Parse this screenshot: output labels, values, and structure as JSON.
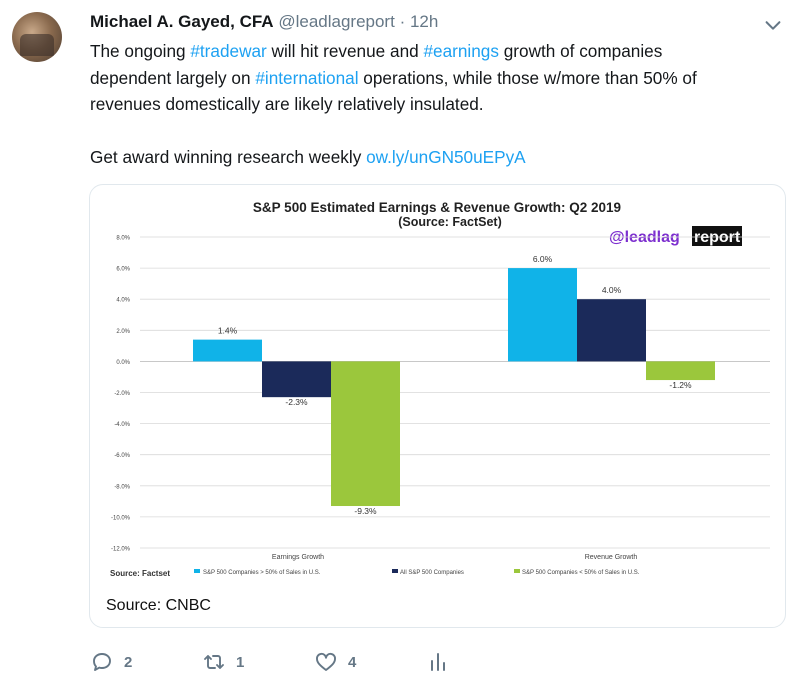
{
  "tweet": {
    "author_name": "Michael A. Gayed, CFA",
    "handle": "@leadlagreport",
    "separator": "·",
    "time": "12h",
    "text": {
      "l1_a": "The ongoing ",
      "l1_tag1": "#tradewar",
      "l1_b": " will hit revenue and ",
      "l1_tag2": "#earnings",
      "l1_c": " growth of companies",
      "l2_a": "dependent largely on ",
      "l2_tag3": "#international",
      "l2_b": " operations, while those w/more than 50% of",
      "l3": "revenues domestically are likely relatively insulated.",
      "p2_a": "Get award winning research weekly ",
      "p2_link": "ow.ly/unGN50uEPyA"
    },
    "card_caption": "Source: CNBC",
    "actions": {
      "reply_count": "2",
      "retweet_count": "1",
      "like_count": "4"
    }
  },
  "colors": {
    "accent": "#1da1f2",
    "muted": "#657786",
    "series_above": "#10b3e8",
    "series_all": "#1b2a5a",
    "series_below": "#9bc73c"
  },
  "icons": [
    "chevron-down-icon",
    "reply-icon",
    "retweet-icon",
    "like-icon",
    "analytics-icon"
  ],
  "chart_data": {
    "type": "bar",
    "title": "S&P 500 Estimated Earnings & Revenue Growth: Q2 2019",
    "subtitle": "(Source: FactSet)",
    "watermark_a": "@leadlag",
    "watermark_b": "report",
    "source_note": "Source: Factset",
    "categories": [
      "Earnings Growth",
      "Revenue Growth"
    ],
    "ylim": [
      -12,
      8
    ],
    "yticks": [
      8,
      6,
      4,
      2,
      0,
      -2,
      -4,
      -6,
      -8,
      -10,
      -12
    ],
    "ytick_labels": [
      "8.0%",
      "6.0%",
      "4.0%",
      "2.0%",
      "0.0%",
      "-2.0%",
      "-4.0%",
      "-6.0%",
      "-8.0%",
      "-10.0%",
      "-12.0%"
    ],
    "series": [
      {
        "name": "S&P 500 Companies > 50% of Sales in U.S.",
        "values": [
          1.4,
          6.0
        ],
        "labels": [
          "1.4%",
          "6.0%"
        ]
      },
      {
        "name": "All S&P 500 Companies",
        "values": [
          -2.3,
          4.0
        ],
        "labels": [
          "-2.3%",
          "4.0%"
        ]
      },
      {
        "name": "S&P 500 Companies < 50% of Sales in U.S.",
        "values": [
          -9.3,
          -1.2
        ],
        "labels": [
          "-9.3%",
          "-1.2%"
        ]
      }
    ],
    "grid": true,
    "legend": "bottom"
  }
}
